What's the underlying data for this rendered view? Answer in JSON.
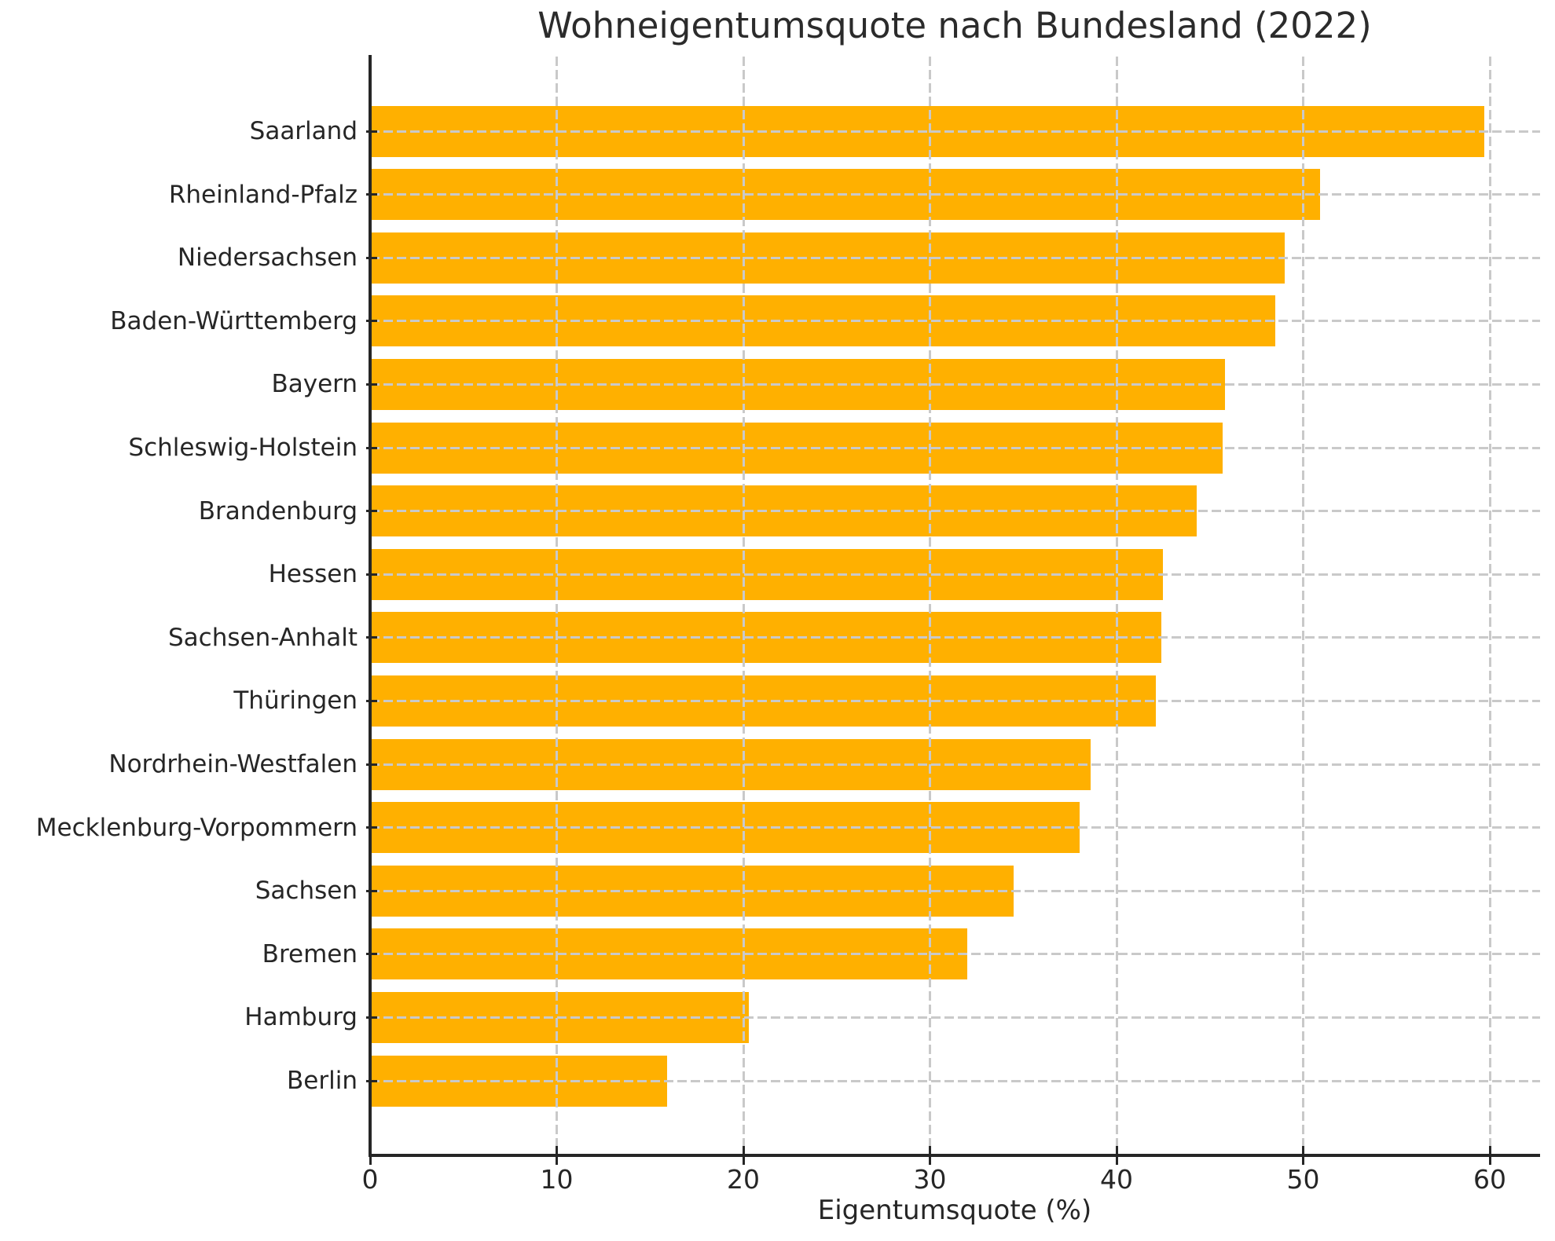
{
  "chart_data": {
    "type": "bar",
    "orientation": "horizontal",
    "title": "Wohneigentumsquote nach Bundesland (2022)",
    "xlabel": "Eigentumsquote (%)",
    "ylabel": "",
    "categories": [
      "Saarland",
      "Rheinland-Pfalz",
      "Niedersachsen",
      "Baden-Württemberg",
      "Bayern",
      "Schleswig-Holstein",
      "Brandenburg",
      "Hessen",
      "Sachsen-Anhalt",
      "Thüringen",
      "Nordrhein-Westfalen",
      "Mecklenburg-Vorpommern",
      "Sachsen",
      "Bremen",
      "Hamburg",
      "Berlin"
    ],
    "values": [
      59.7,
      50.9,
      49.0,
      48.5,
      45.8,
      45.7,
      44.3,
      42.5,
      42.4,
      42.1,
      38.6,
      38.0,
      34.5,
      32.0,
      20.3,
      15.9
    ],
    "xticks": [
      0,
      10,
      20,
      30,
      40,
      50,
      60
    ],
    "xtick_labels": [
      "0",
      "10",
      "20",
      "30",
      "40",
      "50",
      "60"
    ],
    "xlim": [
      0,
      62.7
    ],
    "bar_color": "#FFB000",
    "grid": true,
    "grid_style": "dashed",
    "grid_color": "#c9c9c9",
    "axis_color": "#262626",
    "text_color": "#262626",
    "background_color": "#ffffff"
  }
}
